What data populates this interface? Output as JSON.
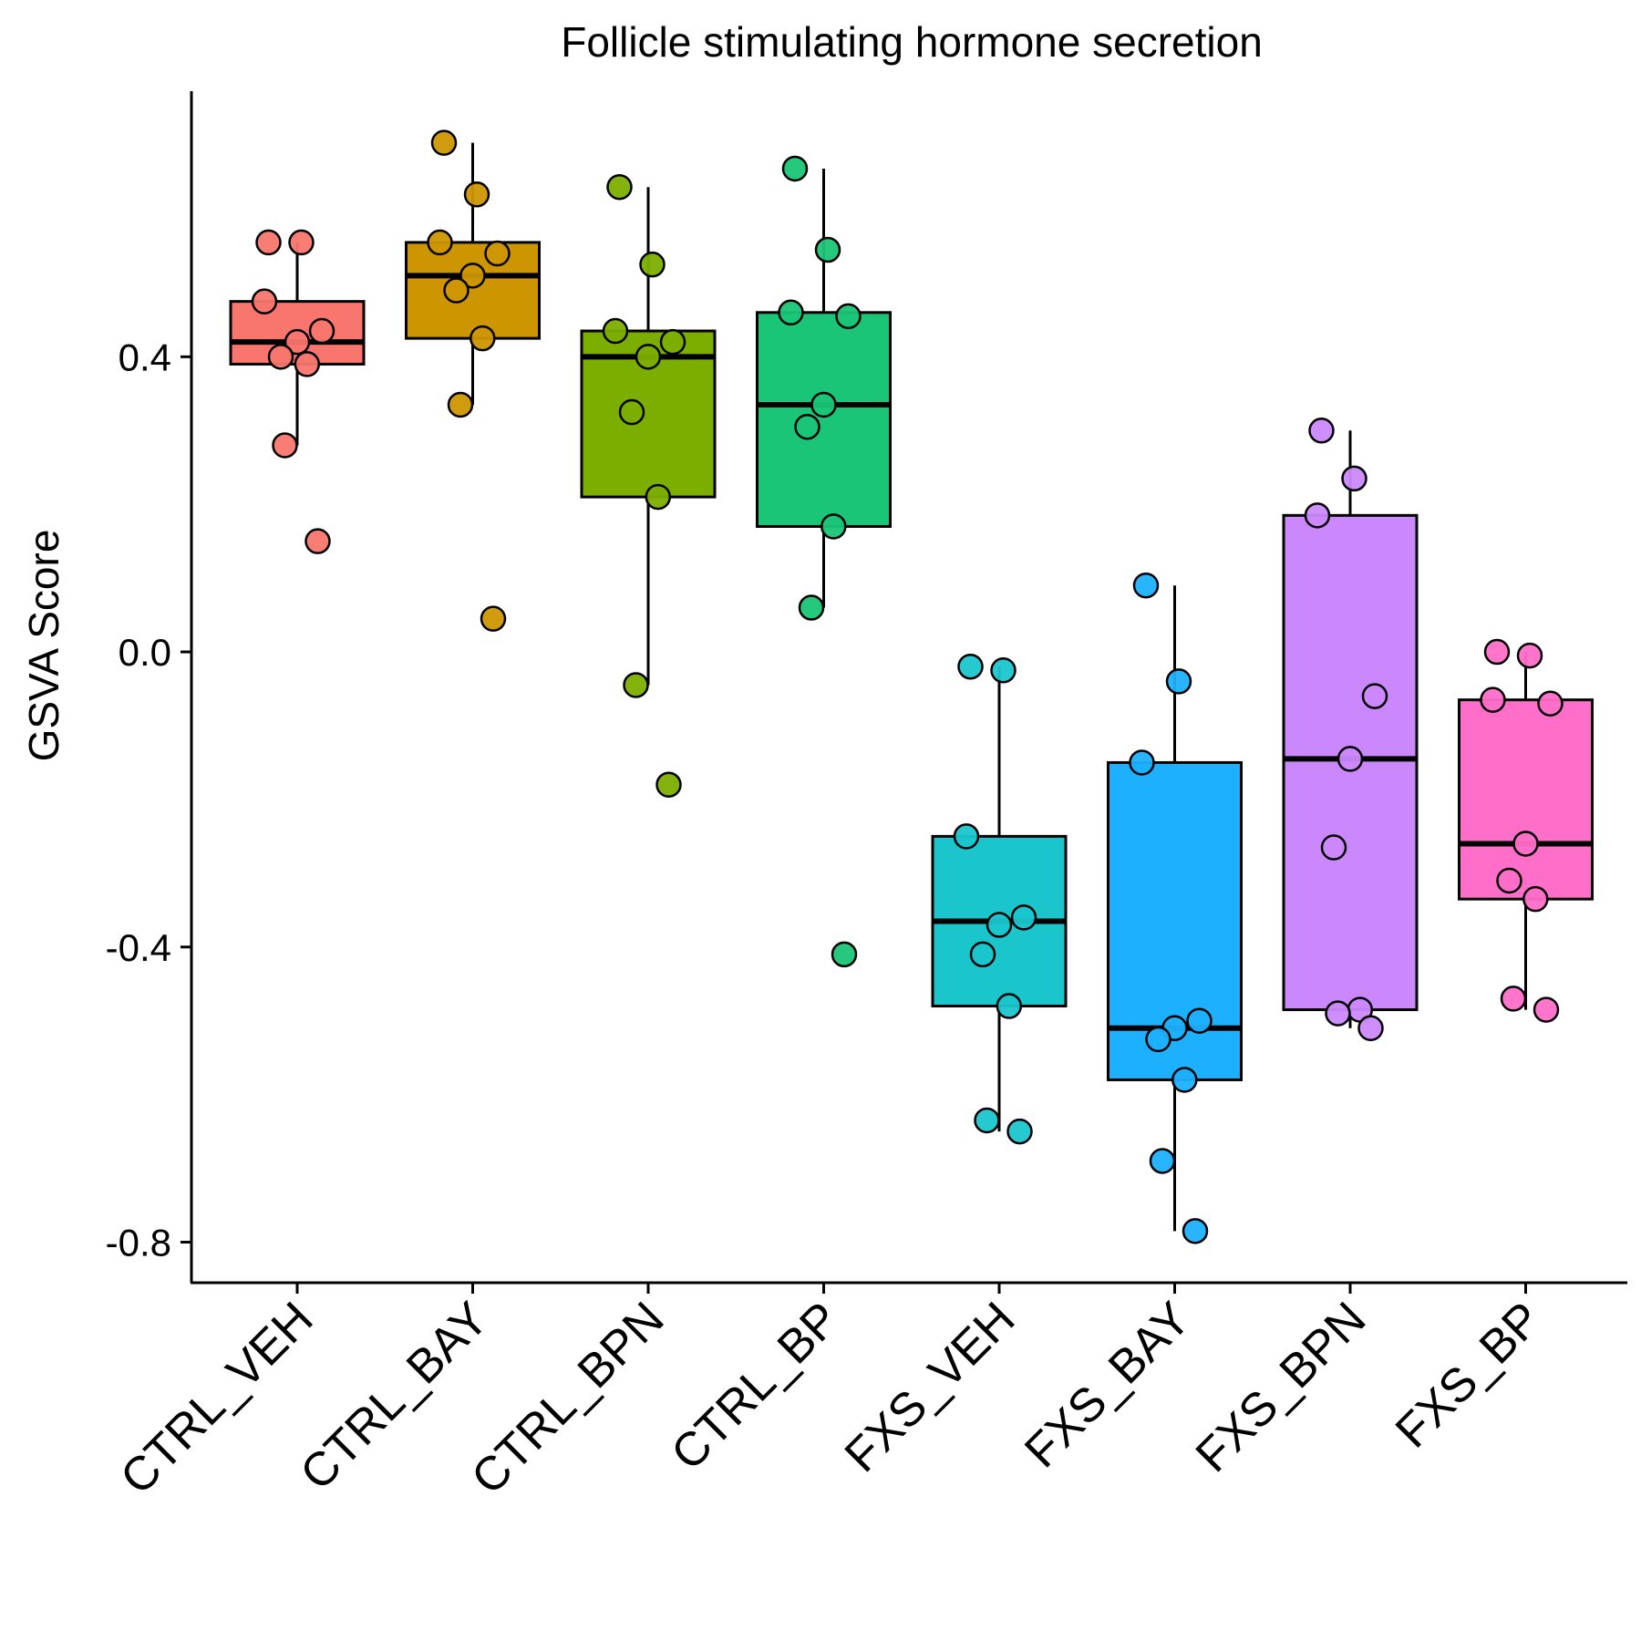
{
  "chart_data": {
    "type": "box",
    "title": "Follicle stimulating hormone secretion",
    "xlabel": "",
    "ylabel": "GSVA Score",
    "ylim": [
      -0.855,
      0.76
    ],
    "yticks": [
      0.4,
      0.0,
      -0.4,
      -0.8
    ],
    "ytick_labels": [
      "0.4",
      "0.0",
      "-0.4",
      "-0.8"
    ],
    "grid": false,
    "legend": "none",
    "categories": [
      "CTRL_VEH",
      "CTRL_BAY",
      "CTRL_BPN",
      "CTRL_BP",
      "FXS_VEH",
      "FXS_BAY",
      "FXS_BPN",
      "FXS_BP"
    ],
    "series": [
      {
        "category": "CTRL_VEH",
        "color": "#F8766D",
        "box": {
          "whisker_low": 0.28,
          "q1": 0.39,
          "median": 0.42,
          "q3": 0.475,
          "whisker_high": 0.555
        },
        "points": [
          0.555,
          0.555,
          0.475,
          0.435,
          0.42,
          0.4,
          0.39,
          0.28,
          0.15
        ]
      },
      {
        "category": "CTRL_BAY",
        "color": "#CD9600",
        "box": {
          "whisker_low": 0.335,
          "q1": 0.425,
          "median": 0.51,
          "q3": 0.555,
          "whisker_high": 0.69
        },
        "points": [
          0.69,
          0.62,
          0.555,
          0.54,
          0.51,
          0.49,
          0.425,
          0.335,
          0.045
        ]
      },
      {
        "category": "CTRL_BPN",
        "color": "#7CAE00",
        "box": {
          "whisker_low": -0.045,
          "q1": 0.21,
          "median": 0.4,
          "q3": 0.435,
          "whisker_high": 0.63
        },
        "points": [
          0.63,
          0.525,
          0.435,
          0.42,
          0.4,
          0.325,
          0.21,
          -0.045,
          -0.18
        ]
      },
      {
        "category": "CTRL_BP",
        "color": "#0CB702",
        "fill": "#1AC577",
        "box": {
          "whisker_low": 0.06,
          "q1": 0.17,
          "median": 0.335,
          "q3": 0.46,
          "whisker_high": 0.655
        },
        "points": [
          0.655,
          0.545,
          0.46,
          0.455,
          0.335,
          0.305,
          0.17,
          0.06,
          -0.41
        ]
      },
      {
        "category": "FXS_VEH",
        "color": "#00BFC4",
        "fill": "#1AC6CC",
        "box": {
          "whisker_low": -0.65,
          "q1": -0.48,
          "median": -0.365,
          "q3": -0.25,
          "whisker_high": -0.02
        },
        "points": [
          -0.02,
          -0.025,
          -0.25,
          -0.36,
          -0.37,
          -0.41,
          -0.48,
          -0.635,
          -0.65
        ]
      },
      {
        "category": "FXS_BAY",
        "color": "#00A9FF",
        "fill": "#1CB0FE",
        "box": {
          "whisker_low": -0.785,
          "q1": -0.58,
          "median": -0.51,
          "q3": -0.15,
          "whisker_high": 0.09
        },
        "points": [
          0.09,
          -0.04,
          -0.15,
          -0.5,
          -0.51,
          -0.525,
          -0.58,
          -0.69,
          -0.785
        ]
      },
      {
        "category": "FXS_BPN",
        "color": "#C77CFF",
        "fill": "#CB88FC",
        "box": {
          "whisker_low": -0.51,
          "q1": -0.485,
          "median": -0.145,
          "q3": 0.185,
          "whisker_high": 0.3
        },
        "points": [
          0.3,
          0.235,
          0.185,
          -0.06,
          -0.145,
          -0.265,
          -0.485,
          -0.49,
          -0.51
        ]
      },
      {
        "category": "FXS_BP",
        "color": "#FF61CC",
        "fill": "#FF6EC9",
        "box": {
          "whisker_low": -0.485,
          "q1": -0.335,
          "median": -0.26,
          "q3": -0.065,
          "whisker_high": -0.0
        },
        "points": [
          0.0,
          -0.005,
          -0.065,
          -0.07,
          -0.26,
          -0.31,
          -0.335,
          -0.47,
          -0.485
        ]
      }
    ]
  }
}
